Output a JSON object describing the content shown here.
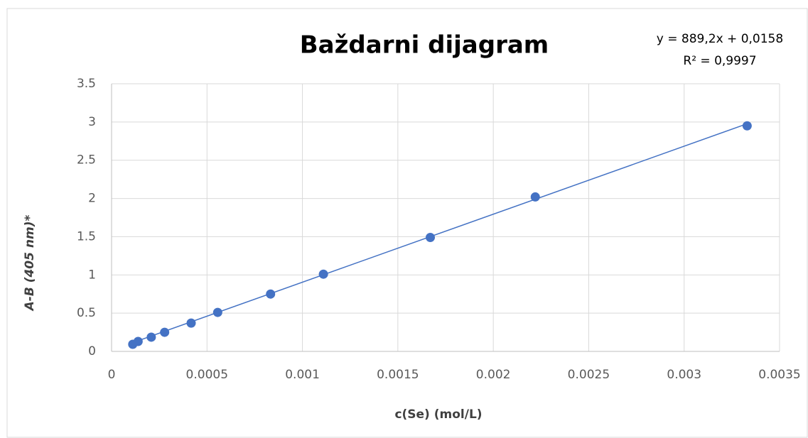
{
  "chart_data": {
    "type": "scatter",
    "title": "Baždarni dijagram",
    "x_label": "c(Se) (mol/L)",
    "y_label": "A-B (405 nm)*",
    "series": [
      {
        "name": "A-B",
        "color": "#4472c4",
        "x": [
          0.000111,
          0.000139,
          0.000208,
          0.000278,
          0.000417,
          0.000556,
          0.000833,
          0.00111,
          0.00167,
          0.00222,
          0.00333
        ],
        "values": [
          0.093,
          0.13,
          0.186,
          0.25,
          0.37,
          0.51,
          0.75,
          1.01,
          1.49,
          2.02,
          2.95
        ]
      }
    ],
    "trendline": {
      "slope": 889.2,
      "intercept": 0.0158,
      "color": "#4472c4",
      "equation": "y = 889,2x + 0,0158",
      "r_squared": "R² = 0,9997"
    },
    "xlim": [
      0,
      0.0035
    ],
    "xticks": [
      0,
      0.0005,
      0.001,
      0.0015,
      0.002,
      0.0025,
      0.003,
      0.0035
    ],
    "ylim": [
      0,
      3.5
    ],
    "yticks": [
      0,
      0.5,
      1,
      1.5,
      2,
      2.5,
      3,
      3.5
    ],
    "grid": true
  }
}
